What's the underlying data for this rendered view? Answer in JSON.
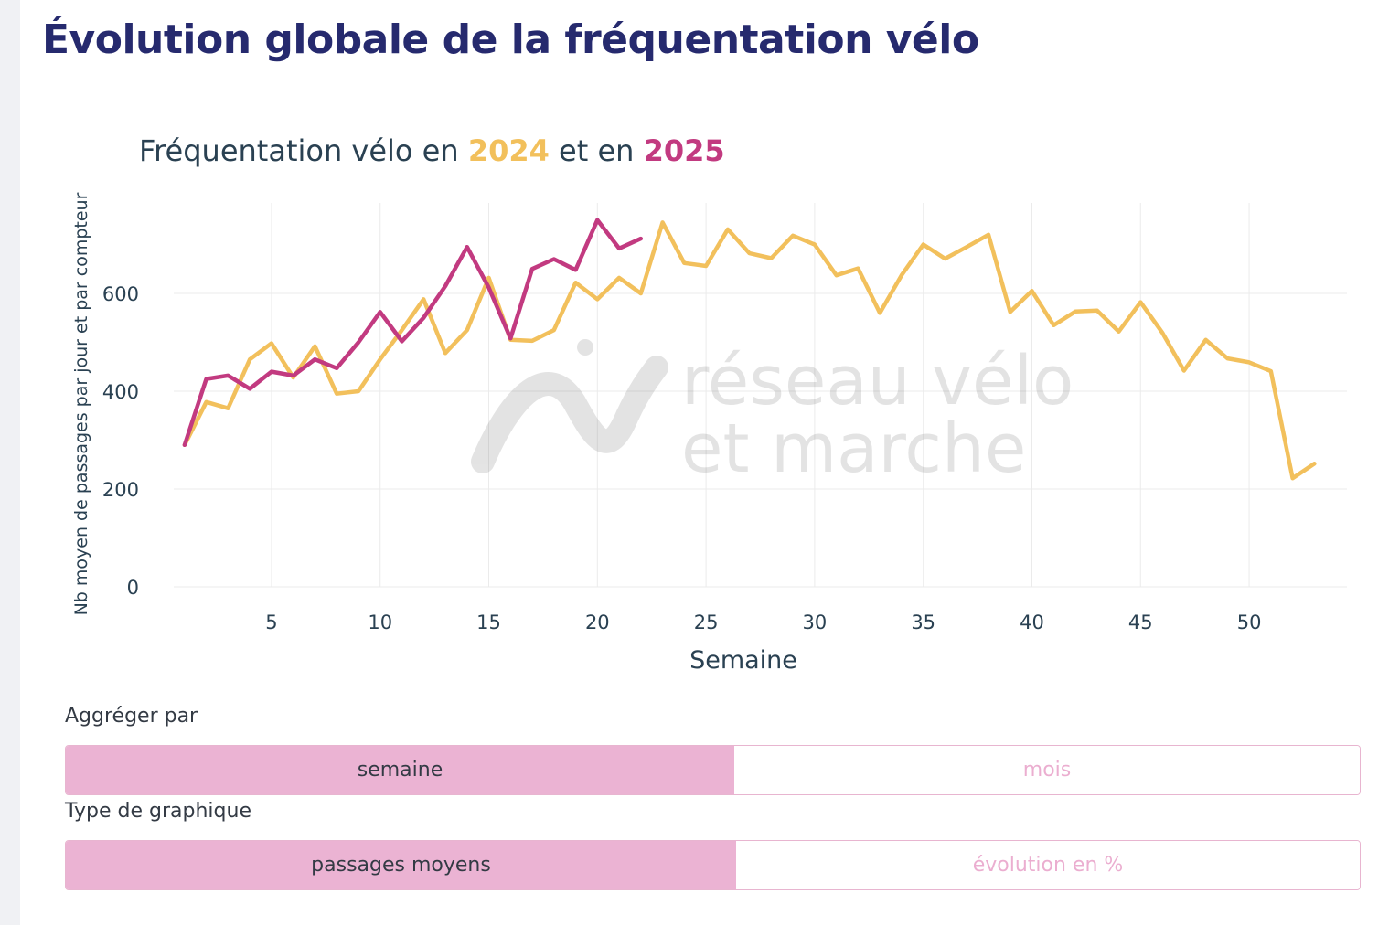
{
  "page": {
    "title": "Évolution globale de la fréquentation vélo"
  },
  "chart_title": {
    "prefix": "Fréquentation vélo en ",
    "year_a": "2024",
    "middle": " et en ",
    "year_b": "2025"
  },
  "watermark": {
    "line1": "réseau vélo",
    "line2": "et marche"
  },
  "colors": {
    "series_2024": "#f2c05c",
    "series_2025": "#c23a80",
    "title": "#262a6e",
    "grid": "#ebebeb",
    "toggle_active": "#ebb3d3"
  },
  "chart_data": {
    "type": "line",
    "xlabel": "Semaine",
    "ylabel": "Nb moyen de passages par jour et par compteur",
    "xlim": [
      0.5,
      54.5
    ],
    "ylim": [
      0,
      785
    ],
    "x_ticks": [
      5,
      10,
      15,
      20,
      25,
      30,
      35,
      40,
      45,
      50
    ],
    "y_ticks": [
      0,
      200,
      400,
      600
    ],
    "series": [
      {
        "name": "2024",
        "x": [
          1,
          2,
          3,
          4,
          5,
          6,
          7,
          8,
          9,
          10,
          11,
          12,
          13,
          14,
          15,
          16,
          17,
          18,
          19,
          20,
          21,
          22,
          23,
          24,
          25,
          26,
          27,
          28,
          29,
          30,
          31,
          32,
          33,
          34,
          35,
          36,
          37,
          38,
          39,
          40,
          41,
          42,
          43,
          44,
          45,
          46,
          47,
          48,
          49,
          50,
          51,
          52,
          53
        ],
        "values": [
          290,
          378,
          365,
          465,
          498,
          428,
          492,
          395,
          400,
          465,
          525,
          588,
          478,
          525,
          632,
          505,
          503,
          525,
          622,
          588,
          632,
          600,
          745,
          662,
          656,
          731,
          682,
          672,
          718,
          700,
          637,
          651,
          560,
          637,
          700,
          671,
          695,
          720,
          562,
          605,
          535,
          563,
          565,
          522,
          582,
          520,
          442,
          505,
          467,
          459,
          441,
          222,
          252
        ]
      },
      {
        "name": "2025",
        "x": [
          1,
          2,
          3,
          4,
          5,
          6,
          7,
          8,
          9,
          10,
          11,
          12,
          13,
          14,
          15,
          16,
          17,
          18,
          19,
          20,
          21,
          22
        ],
        "values": [
          290,
          425,
          432,
          405,
          440,
          432,
          465,
          447,
          500,
          562,
          502,
          550,
          615,
          695,
          612,
          508,
          650,
          670,
          648,
          750,
          692,
          712
        ]
      }
    ]
  },
  "controls": {
    "aggregate_label": "Aggréger par",
    "aggregate_options": [
      "semaine",
      "mois"
    ],
    "aggregate_selected": "semaine",
    "chart_type_label": "Type de graphique",
    "chart_type_options": [
      "passages moyens",
      "évolution en %"
    ],
    "chart_type_selected": "passages moyens"
  }
}
